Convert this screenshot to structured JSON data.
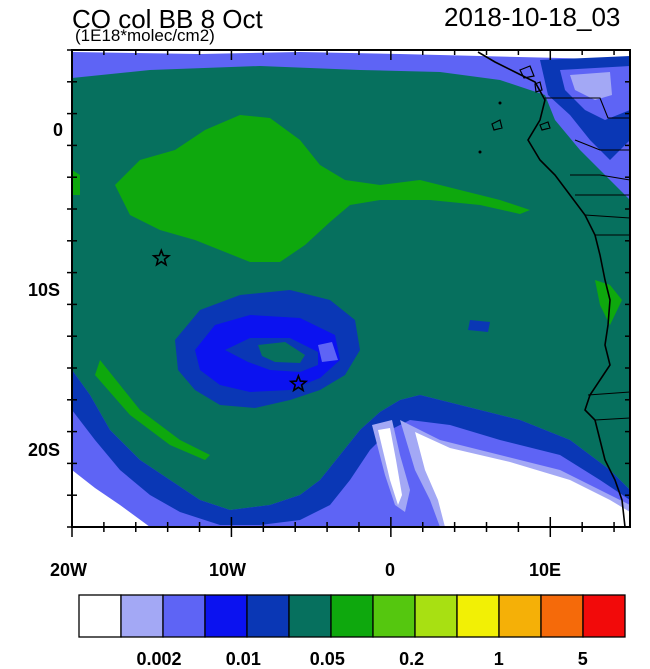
{
  "title_left": "CO col BB 8 Oct",
  "title_right": "2018-10-18_03",
  "units": "(1E18*molec/cm2)",
  "y_ticks": [
    {
      "value": 0,
      "label": "0"
    },
    {
      "value": -10,
      "label": "10S"
    },
    {
      "value": -20,
      "label": "20S"
    }
  ],
  "x_ticks": [
    {
      "value": -20,
      "label": "20W"
    },
    {
      "value": -10,
      "label": "10W"
    },
    {
      "value": 0,
      "label": "0"
    },
    {
      "value": 10,
      "label": "10E"
    }
  ],
  "map_extent": {
    "lon": [
      -20,
      15
    ],
    "lat": [
      -25,
      5
    ]
  },
  "colorbar": {
    "colors": [
      "#ffffff",
      "#a3a8f5",
      "#5e64f5",
      "#0b12f0",
      "#0a37b5",
      "#06705e",
      "#0ea80d",
      "#55c70f",
      "#a8e012",
      "#f2f005",
      "#f5b007",
      "#f56a0a",
      "#f20a0a"
    ],
    "labels": [
      {
        "after_box": 2,
        "text": "0.002"
      },
      {
        "after_box": 4,
        "text": "0.01"
      },
      {
        "after_box": 6,
        "text": "0.05"
      },
      {
        "after_box": 8,
        "text": "0.2"
      },
      {
        "after_box": 10,
        "text": "1"
      },
      {
        "after_box": 12,
        "text": "5"
      }
    ]
  },
  "markers": [
    {
      "name": "star",
      "lon": -14.4,
      "lat": -8.1
    },
    {
      "name": "star",
      "lon": -5.8,
      "lat": -16.0
    }
  ]
}
